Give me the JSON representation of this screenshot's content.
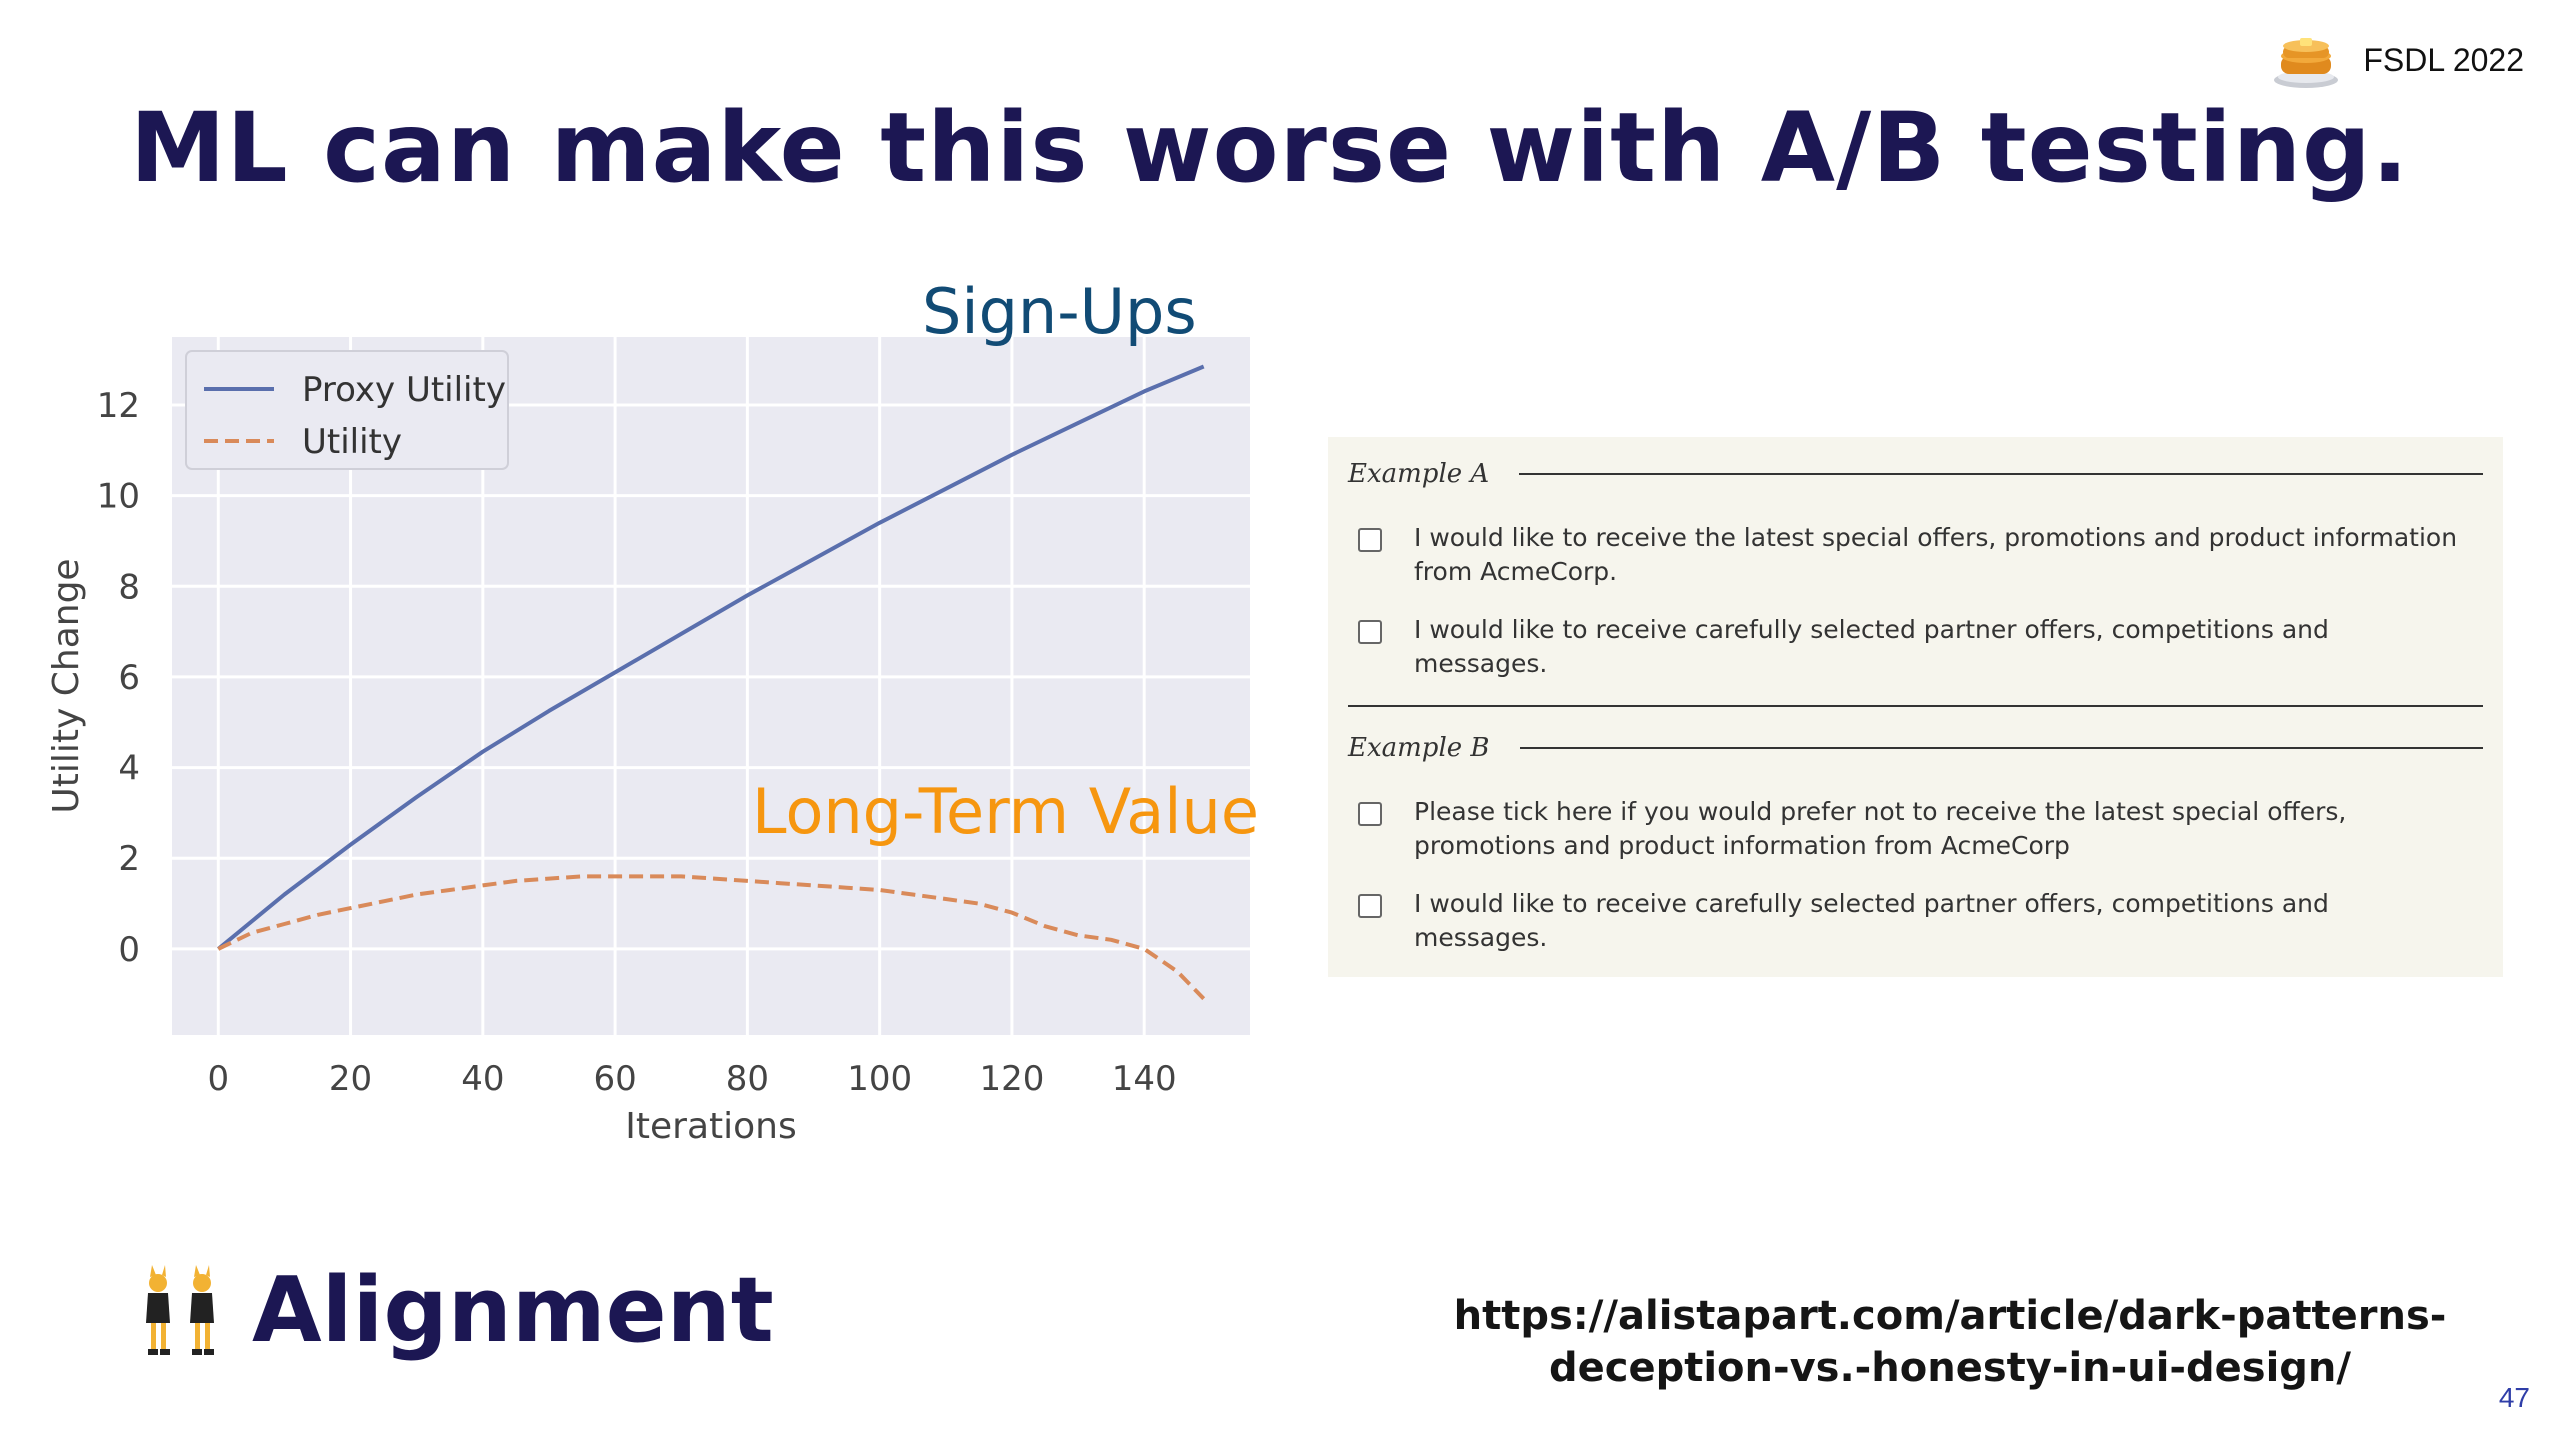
{
  "brand": {
    "text": "FSDL 2022",
    "logo": "pancake-stack-icon"
  },
  "title": "ML can make this worse with A/B testing.",
  "annotations": {
    "signups": "Sign-Ups",
    "long_term_value": "Long-Term Value"
  },
  "chart_data": {
    "type": "line",
    "xlabel": "Iterations",
    "ylabel": "Utility Change",
    "xlim": [
      -7,
      156
    ],
    "ylim": [
      -1.9,
      13.5
    ],
    "xticks": [
      0,
      20,
      40,
      60,
      80,
      100,
      120,
      140
    ],
    "yticks": [
      0,
      2,
      4,
      6,
      8,
      10,
      12
    ],
    "grid": true,
    "legend_position": "top-left",
    "series": [
      {
        "name": "Proxy Utility",
        "style": "solid",
        "color": "#5a6fad",
        "x": [
          0,
          10,
          20,
          30,
          40,
          50,
          60,
          70,
          80,
          90,
          100,
          110,
          120,
          130,
          140,
          149
        ],
        "y": [
          0,
          1.2,
          2.3,
          3.35,
          4.35,
          5.25,
          6.1,
          6.95,
          7.8,
          8.6,
          9.4,
          10.15,
          10.9,
          11.6,
          12.3,
          12.85
        ]
      },
      {
        "name": "Utility",
        "style": "dashed",
        "color": "#d98a5a",
        "x": [
          0,
          5,
          10,
          15,
          20,
          25,
          30,
          35,
          40,
          45,
          50,
          55,
          60,
          65,
          70,
          75,
          80,
          85,
          90,
          95,
          100,
          105,
          110,
          115,
          120,
          125,
          130,
          135,
          140,
          145,
          149
        ],
        "y": [
          0,
          0.35,
          0.55,
          0.75,
          0.9,
          1.05,
          1.2,
          1.3,
          1.4,
          1.5,
          1.55,
          1.6,
          1.6,
          1.6,
          1.6,
          1.55,
          1.5,
          1.45,
          1.4,
          1.35,
          1.3,
          1.2,
          1.1,
          1.0,
          0.8,
          0.5,
          0.3,
          0.2,
          0.0,
          -0.5,
          -1.1
        ]
      }
    ]
  },
  "forms": {
    "example_a": {
      "label": "Example A",
      "options": [
        "I would like to receive the latest special offers, promotions and product information from AcmeCorp.",
        "I would like to receive carefully selected partner offers, competitions and messages."
      ]
    },
    "example_b": {
      "label": "Example B",
      "options": [
        "Please tick here if you would prefer not to receive the latest special offers, promotions and product information from AcmeCorp",
        "I would like to receive carefully selected partner offers, competitions and messages."
      ]
    }
  },
  "section": {
    "label": "Alignment",
    "icon": "dancers-icon"
  },
  "reference": {
    "line1": "https://alistapart.com/article/dark-patterns-",
    "line2": "deception-vs.-honesty-in-ui-design/"
  },
  "page_number": "47"
}
